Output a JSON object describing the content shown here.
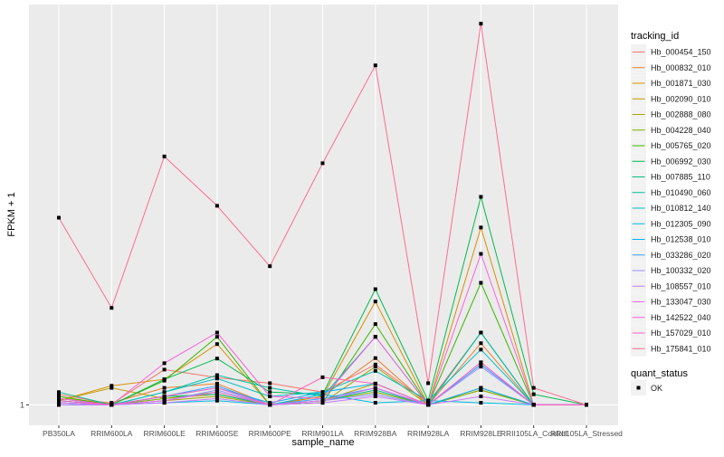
{
  "chart_data": {
    "type": "line",
    "title": "",
    "xlabel": "sample_name",
    "ylabel": "FPKM + 1",
    "ylim": [
      0.52,
      10.41
    ],
    "y_ticks": [
      {
        "value": 1,
        "label": "1"
      }
    ],
    "grid": true,
    "legend_placement": "right",
    "categories": [
      "PB350LA",
      "RRIM600LA",
      "RRIM600LE",
      "RRIM600SE",
      "RRIM600PE",
      "RRIM901LA",
      "RRIM928BA",
      "RRIM928LA",
      "RRIM928LE",
      "RRII105LA_Control",
      "RRII105LA_Stressed"
    ],
    "legend_title": "tracking_id",
    "series": [
      {
        "name": "Hb_000454_150",
        "color": "#F8766D",
        "values": [
          1.25,
          1.02,
          1.83,
          1.64,
          1.51,
          1.3,
          1.95,
          1.05,
          2.7,
          1,
          1
        ]
      },
      {
        "name": "Hb_000832_010",
        "color": "#EA8331",
        "values": [
          1.15,
          1.05,
          1.4,
          1.5,
          1.0,
          1.2,
          2.1,
          1.0,
          2.45,
          1,
          1
        ]
      },
      {
        "name": "Hb_001871_030",
        "color": "#D89000",
        "values": [
          1.1,
          1.45,
          1.6,
          2.43,
          1.0,
          1.2,
          3.43,
          1.0,
          5.17,
          1,
          1
        ]
      },
      {
        "name": "Hb_002090_010",
        "color": "#C09B00",
        "values": [
          1.1,
          1.4,
          1.15,
          1.25,
          1.0,
          1.1,
          1.5,
          1.0,
          1.35,
          1,
          1
        ]
      },
      {
        "name": "Hb_002888_080",
        "color": "#A3A500",
        "values": [
          1.05,
          1.0,
          1.1,
          1.2,
          1.0,
          1.05,
          1.9,
          1.0,
          1.4,
          1,
          1
        ]
      },
      {
        "name": "Hb_004228_040",
        "color": "#7CAE00",
        "values": [
          1.05,
          1.0,
          1.15,
          1.3,
          1.0,
          1.1,
          1.3,
          1.0,
          1.35,
          1,
          1
        ]
      },
      {
        "name": "Hb_005765_020",
        "color": "#39B600",
        "values": [
          1.2,
          1.0,
          1.57,
          2.6,
          1.0,
          1.05,
          2.9,
          1.0,
          3.87,
          1,
          1
        ]
      },
      {
        "name": "Hb_006992_030",
        "color": "#00BB4E",
        "values": [
          1.1,
          1.0,
          1.6,
          2.09,
          1.3,
          1.25,
          3.72,
          1.1,
          5.89,
          1.25,
          1
        ]
      },
      {
        "name": "Hb_007885_110",
        "color": "#00BF7D",
        "values": [
          1.15,
          1.0,
          1.2,
          1.25,
          1.0,
          1.1,
          1.35,
          1.0,
          2.7,
          1,
          1
        ]
      },
      {
        "name": "Hb_010490_060",
        "color": "#00C1A3",
        "values": [
          1.3,
          1.0,
          1.3,
          1.7,
          1.4,
          1.2,
          2.6,
          1.0,
          2.7,
          1,
          1
        ]
      },
      {
        "name": "Hb_010812_140",
        "color": "#00BFC4",
        "values": [
          1.1,
          1.0,
          1.3,
          1.62,
          1.2,
          1.3,
          1.8,
          1.1,
          2.3,
          1,
          1
        ]
      },
      {
        "name": "Hb_012305_090",
        "color": "#00BAE0",
        "values": [
          1.0,
          1.0,
          1.05,
          1.1,
          1.0,
          1.25,
          1.05,
          1.1,
          1.05,
          1,
          1
        ]
      },
      {
        "name": "Hb_012538_010",
        "color": "#00B0F6",
        "values": [
          1.05,
          1.0,
          1.2,
          1.4,
          1.05,
          1.3,
          1.5,
          1.0,
          1.4,
          1,
          1
        ]
      },
      {
        "name": "Hb_033286_020",
        "color": "#35A2FF",
        "values": [
          1.05,
          1.0,
          1.2,
          1.45,
          1.0,
          1.15,
          1.4,
          1.0,
          1.95,
          1,
          1
        ]
      },
      {
        "name": "Hb_100332_020",
        "color": "#9590FF",
        "values": [
          1.05,
          1.0,
          1.1,
          1.35,
          1.0,
          1.1,
          1.25,
          1.0,
          1.9,
          1,
          1
        ]
      },
      {
        "name": "Hb_108557_010",
        "color": "#C77CFF",
        "values": [
          1.0,
          1.0,
          1.05,
          1.15,
          1.0,
          1.05,
          1.2,
          1.0,
          1.2,
          1,
          1
        ]
      },
      {
        "name": "Hb_133047_030",
        "color": "#E76BF3",
        "values": [
          1.05,
          1.0,
          1.1,
          1.3,
          1.0,
          1.1,
          1.4,
          1.0,
          2.0,
          1,
          1
        ]
      },
      {
        "name": "Hb_142522_040",
        "color": "#FA62DB",
        "values": [
          1.15,
          1.0,
          1.98,
          2.7,
          1.2,
          1.15,
          2.6,
          1.0,
          4.55,
          1,
          1
        ]
      },
      {
        "name": "Hb_157029_010",
        "color": "#FF62BC",
        "values": [
          1.1,
          1.0,
          1.2,
          1.4,
          1.0,
          1.65,
          1.5,
          1.0,
          2.0,
          1,
          1
        ]
      },
      {
        "name": "Hb_175841_010",
        "color": "#FF6C91",
        "values": [
          5.4,
          3.28,
          6.84,
          5.68,
          4.26,
          6.68,
          8.98,
          1.51,
          9.96,
          1.4,
          1
        ]
      }
    ],
    "shape_legend": {
      "title": "quant_status",
      "items": [
        "OK"
      ]
    }
  }
}
